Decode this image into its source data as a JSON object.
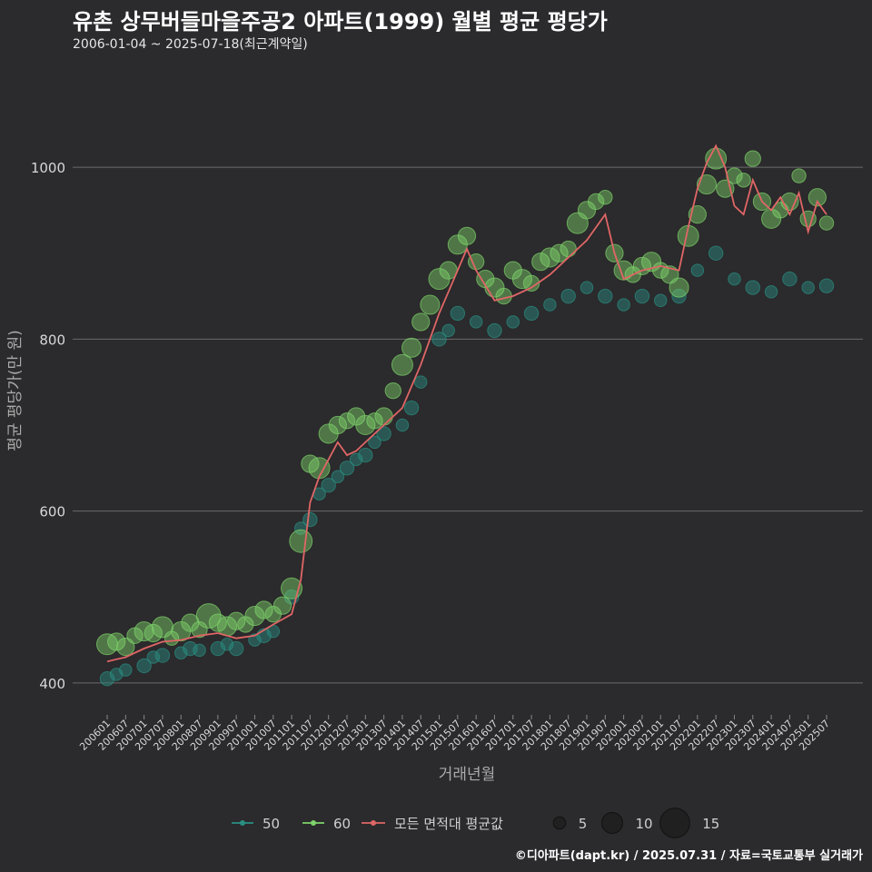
{
  "title": "유촌 상무버들마을주공2 아파트(1999) 월별 평균 평당가",
  "subtitle": "2006-01-04 ~ 2025-07-18(최근계약일)",
  "credit": "©디아파트(dapt.kr) / 2025.07.31 / 자료=국토교통부 실거래가",
  "chart_data": {
    "type": "scatter",
    "title": "유촌 상무버들마을주공2 아파트(1999) 월별 평균 평당가",
    "xlabel": "거래년월",
    "ylabel": "평균 평당가(만 원)",
    "ylim": [
      365,
      1110
    ],
    "yticks": [
      400,
      600,
      800,
      1000
    ],
    "xticks": [
      "200601",
      "200607",
      "200701",
      "200707",
      "200801",
      "200807",
      "200901",
      "200907",
      "201001",
      "201007",
      "201101",
      "201107",
      "201201",
      "201207",
      "201301",
      "201307",
      "201401",
      "201407",
      "201501",
      "201507",
      "201601",
      "201607",
      "201701",
      "201707",
      "201801",
      "201807",
      "201901",
      "201907",
      "202001",
      "202007",
      "202101",
      "202107",
      "202201",
      "202207",
      "202301",
      "202307",
      "202401",
      "202407",
      "202501",
      "202507"
    ],
    "x_range": [
      "2006-01",
      "2025-07"
    ],
    "grid": true,
    "legend": {
      "position": "bottom",
      "series": [
        {
          "name": "50",
          "color": "#2a8f82"
        },
        {
          "name": "60",
          "color": "#7ed36a"
        },
        {
          "name": "모든 면적대 평균값",
          "color": "#e06666"
        }
      ],
      "size_labels": [
        "5",
        "10",
        "15"
      ],
      "size_values": [
        5,
        10,
        15
      ]
    },
    "series": [
      {
        "name": "모든 면적대 평균값",
        "type": "line",
        "color": "#e06666",
        "points": [
          [
            "2006-01",
            425
          ],
          [
            "2006-07",
            430
          ],
          [
            "2007-01",
            440
          ],
          [
            "2007-07",
            448
          ],
          [
            "2008-01",
            450
          ],
          [
            "2008-07",
            455
          ],
          [
            "2009-01",
            458
          ],
          [
            "2009-07",
            452
          ],
          [
            "2010-01",
            455
          ],
          [
            "2010-07",
            468
          ],
          [
            "2011-01",
            480
          ],
          [
            "2011-04",
            520
          ],
          [
            "2011-07",
            610
          ],
          [
            "2011-10",
            640
          ],
          [
            "2012-01",
            660
          ],
          [
            "2012-04",
            680
          ],
          [
            "2012-07",
            665
          ],
          [
            "2012-10",
            670
          ],
          [
            "2013-01",
            680
          ],
          [
            "2013-07",
            700
          ],
          [
            "2014-01",
            720
          ],
          [
            "2014-07",
            770
          ],
          [
            "2015-01",
            830
          ],
          [
            "2015-04",
            855
          ],
          [
            "2015-07",
            880
          ],
          [
            "2015-10",
            905
          ],
          [
            "2016-01",
            880
          ],
          [
            "2016-07",
            845
          ],
          [
            "2017-01",
            850
          ],
          [
            "2017-07",
            860
          ],
          [
            "2018-01",
            875
          ],
          [
            "2018-07",
            895
          ],
          [
            "2019-01",
            915
          ],
          [
            "2019-07",
            945
          ],
          [
            "2019-10",
            900
          ],
          [
            "2020-01",
            870
          ],
          [
            "2020-07",
            880
          ],
          [
            "2021-01",
            885
          ],
          [
            "2021-07",
            880
          ],
          [
            "2021-10",
            930
          ],
          [
            "2022-01",
            975
          ],
          [
            "2022-04",
            1005
          ],
          [
            "2022-07",
            1025
          ],
          [
            "2022-10",
            1000
          ],
          [
            "2023-01",
            955
          ],
          [
            "2023-04",
            945
          ],
          [
            "2023-07",
            985
          ],
          [
            "2023-10",
            960
          ],
          [
            "2024-01",
            950
          ],
          [
            "2024-04",
            965
          ],
          [
            "2024-07",
            945
          ],
          [
            "2024-10",
            970
          ],
          [
            "2025-01",
            925
          ],
          [
            "2025-04",
            960
          ],
          [
            "2025-07",
            945
          ]
        ]
      },
      {
        "name": "60",
        "type": "scatter",
        "color": "#7ed36a",
        "points": [
          [
            "2006-01",
            445,
            10
          ],
          [
            "2006-04",
            448,
            8
          ],
          [
            "2006-07",
            442,
            8
          ],
          [
            "2006-10",
            455,
            7
          ],
          [
            "2007-01",
            460,
            9
          ],
          [
            "2007-04",
            458,
            8
          ],
          [
            "2007-07",
            465,
            10
          ],
          [
            "2007-10",
            452,
            6
          ],
          [
            "2008-01",
            460,
            9
          ],
          [
            "2008-04",
            470,
            8
          ],
          [
            "2008-07",
            462,
            7
          ],
          [
            "2008-10",
            478,
            12
          ],
          [
            "2009-01",
            470,
            8
          ],
          [
            "2009-04",
            466,
            9
          ],
          [
            "2009-07",
            472,
            8
          ],
          [
            "2009-10",
            468,
            7
          ],
          [
            "2010-01",
            478,
            9
          ],
          [
            "2010-04",
            485,
            8
          ],
          [
            "2010-07",
            480,
            7
          ],
          [
            "2010-10",
            490,
            8
          ],
          [
            "2011-01",
            510,
            10
          ],
          [
            "2011-04",
            565,
            11
          ],
          [
            "2011-07",
            655,
            8
          ],
          [
            "2011-10",
            650,
            10
          ],
          [
            "2012-01",
            690,
            9
          ],
          [
            "2012-04",
            700,
            8
          ],
          [
            "2012-07",
            705,
            7
          ],
          [
            "2012-10",
            710,
            8
          ],
          [
            "2013-01",
            700,
            9
          ],
          [
            "2013-04",
            705,
            7
          ],
          [
            "2013-07",
            710,
            8
          ],
          [
            "2013-10",
            740,
            7
          ],
          [
            "2014-01",
            770,
            10
          ],
          [
            "2014-04",
            790,
            9
          ],
          [
            "2014-07",
            820,
            8
          ],
          [
            "2014-10",
            840,
            9
          ],
          [
            "2015-01",
            870,
            10
          ],
          [
            "2015-04",
            880,
            8
          ],
          [
            "2015-07",
            910,
            9
          ],
          [
            "2015-10",
            920,
            8
          ],
          [
            "2016-01",
            890,
            7
          ],
          [
            "2016-04",
            870,
            8
          ],
          [
            "2016-07",
            860,
            9
          ],
          [
            "2016-10",
            850,
            7
          ],
          [
            "2017-01",
            880,
            8
          ],
          [
            "2017-04",
            870,
            9
          ],
          [
            "2017-07",
            865,
            7
          ],
          [
            "2017-10",
            890,
            8
          ],
          [
            "2018-01",
            895,
            9
          ],
          [
            "2018-04",
            900,
            8
          ],
          [
            "2018-07",
            905,
            7
          ],
          [
            "2018-10",
            935,
            10
          ],
          [
            "2019-01",
            950,
            8
          ],
          [
            "2019-04",
            960,
            7
          ],
          [
            "2019-07",
            965,
            6
          ],
          [
            "2019-10",
            900,
            8
          ],
          [
            "2020-01",
            880,
            9
          ],
          [
            "2020-04",
            875,
            7
          ],
          [
            "2020-07",
            885,
            8
          ],
          [
            "2020-10",
            890,
            9
          ],
          [
            "2021-01",
            880,
            7
          ],
          [
            "2021-04",
            875,
            8
          ],
          [
            "2021-07",
            860,
            9
          ],
          [
            "2021-10",
            920,
            10
          ],
          [
            "2022-01",
            945,
            8
          ],
          [
            "2022-04",
            980,
            9
          ],
          [
            "2022-07",
            1010,
            10
          ],
          [
            "2022-10",
            975,
            8
          ],
          [
            "2023-01",
            990,
            7
          ],
          [
            "2023-04",
            985,
            6
          ],
          [
            "2023-07",
            1010,
            7
          ],
          [
            "2023-10",
            960,
            8
          ],
          [
            "2024-01",
            940,
            9
          ],
          [
            "2024-04",
            950,
            7
          ],
          [
            "2024-07",
            960,
            8
          ],
          [
            "2024-10",
            990,
            6
          ],
          [
            "2025-01",
            940,
            7
          ],
          [
            "2025-04",
            965,
            8
          ],
          [
            "2025-07",
            935,
            6
          ]
        ]
      },
      {
        "name": "50",
        "type": "scatter",
        "color": "#2a8f82",
        "points": [
          [
            "2006-01",
            405,
            6
          ],
          [
            "2006-04",
            410,
            5
          ],
          [
            "2006-07",
            415,
            5
          ],
          [
            "2007-01",
            420,
            6
          ],
          [
            "2007-04",
            430,
            5
          ],
          [
            "2007-07",
            432,
            6
          ],
          [
            "2008-01",
            435,
            5
          ],
          [
            "2008-04",
            440,
            6
          ],
          [
            "2008-07",
            438,
            5
          ],
          [
            "2009-01",
            440,
            6
          ],
          [
            "2009-04",
            445,
            5
          ],
          [
            "2009-07",
            440,
            6
          ],
          [
            "2010-01",
            450,
            5
          ],
          [
            "2010-04",
            455,
            6
          ],
          [
            "2010-07",
            460,
            5
          ],
          [
            "2011-01",
            500,
            6
          ],
          [
            "2011-04",
            580,
            5
          ],
          [
            "2011-07",
            590,
            6
          ],
          [
            "2011-10",
            620,
            5
          ],
          [
            "2012-01",
            630,
            6
          ],
          [
            "2012-04",
            640,
            5
          ],
          [
            "2012-07",
            650,
            6
          ],
          [
            "2012-10",
            660,
            5
          ],
          [
            "2013-01",
            665,
            6
          ],
          [
            "2013-04",
            680,
            5
          ],
          [
            "2013-07",
            690,
            6
          ],
          [
            "2014-01",
            700,
            5
          ],
          [
            "2014-04",
            720,
            6
          ],
          [
            "2014-07",
            750,
            5
          ],
          [
            "2015-01",
            800,
            6
          ],
          [
            "2015-04",
            810,
            5
          ],
          [
            "2015-07",
            830,
            6
          ],
          [
            "2016-01",
            820,
            5
          ],
          [
            "2016-07",
            810,
            6
          ],
          [
            "2017-01",
            820,
            5
          ],
          [
            "2017-07",
            830,
            6
          ],
          [
            "2018-01",
            840,
            5
          ],
          [
            "2018-07",
            850,
            6
          ],
          [
            "2019-01",
            860,
            5
          ],
          [
            "2019-07",
            850,
            6
          ],
          [
            "2020-01",
            840,
            5
          ],
          [
            "2020-07",
            850,
            6
          ],
          [
            "2021-01",
            845,
            5
          ],
          [
            "2021-07",
            850,
            6
          ],
          [
            "2022-01",
            880,
            5
          ],
          [
            "2022-07",
            900,
            6
          ],
          [
            "2023-01",
            870,
            5
          ],
          [
            "2023-07",
            860,
            6
          ],
          [
            "2024-01",
            855,
            5
          ],
          [
            "2024-07",
            870,
            6
          ],
          [
            "2025-01",
            860,
            5
          ],
          [
            "2025-07",
            862,
            6
          ]
        ]
      }
    ]
  }
}
